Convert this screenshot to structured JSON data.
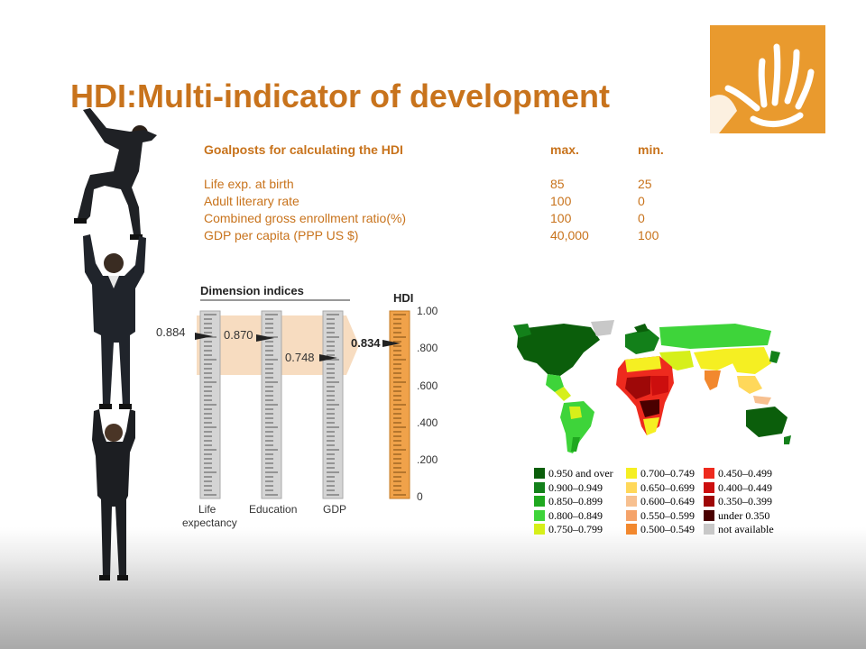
{
  "title": "HDI:Multi-indicator of development",
  "goalposts": {
    "header": {
      "label": "Goalposts for calculating the HDI",
      "max": "max.",
      "min": "min."
    },
    "rows": [
      {
        "label": "Life exp. at birth",
        "max": "85",
        "min": "25"
      },
      {
        "label": "Adult literary rate",
        "max": "100",
        "min": "0"
      },
      {
        "label": "Combined gross enrollment ratio(%)",
        "max": "100",
        "min": "0"
      },
      {
        "label": "GDP per capita (PPP US $)",
        "max": "40,000",
        "min": "100"
      }
    ]
  },
  "diagram": {
    "heading": "Dimension indices",
    "hdi_label": "HDI",
    "indices": [
      {
        "label_line1": "Life",
        "label_line2": "expectancy",
        "value": "0.884"
      },
      {
        "label_line1": "Education",
        "label_line2": "",
        "value": "0.870"
      },
      {
        "label_line1": "GDP",
        "label_line2": "",
        "value": "0.748"
      }
    ],
    "hdi_value": "0.834",
    "scale_ticks": [
      "1.00",
      ".800",
      ".600",
      ".400",
      ".200",
      "0"
    ]
  },
  "legend": {
    "colors": {
      "c1": "#0b5e0b",
      "c2": "#13801a",
      "c3": "#1fa81f",
      "c4": "#3ed43a",
      "c5": "#d6ef1a",
      "c6": "#f5ef22",
      "c7": "#ffd85a",
      "c8": "#f7c090",
      "c9": "#f5a36a",
      "c10": "#f2882e",
      "c11": "#ee2a1e",
      "c12": "#cc0e0e",
      "c13": "#9e0808",
      "c14": "#4a0000",
      "c15": "#c8c8c8"
    },
    "items": [
      {
        "label": "0.950 and over"
      },
      {
        "label": "0.900–0.949"
      },
      {
        "label": "0.850–0.899"
      },
      {
        "label": "0.800–0.849"
      },
      {
        "label": "0.750–0.799"
      },
      {
        "label": "0.700–0.749"
      },
      {
        "label": "0.650–0.699"
      },
      {
        "label": "0.600–0.649"
      },
      {
        "label": "0.550–0.599"
      },
      {
        "label": "0.500–0.549"
      },
      {
        "label": "0.450–0.499"
      },
      {
        "label": "0.400–0.449"
      },
      {
        "label": "0.350–0.399"
      },
      {
        "label": "under 0.350"
      },
      {
        "label": "not available"
      }
    ]
  },
  "brand": {
    "orange": "#e99a2e",
    "title_color": "#c8731c"
  }
}
